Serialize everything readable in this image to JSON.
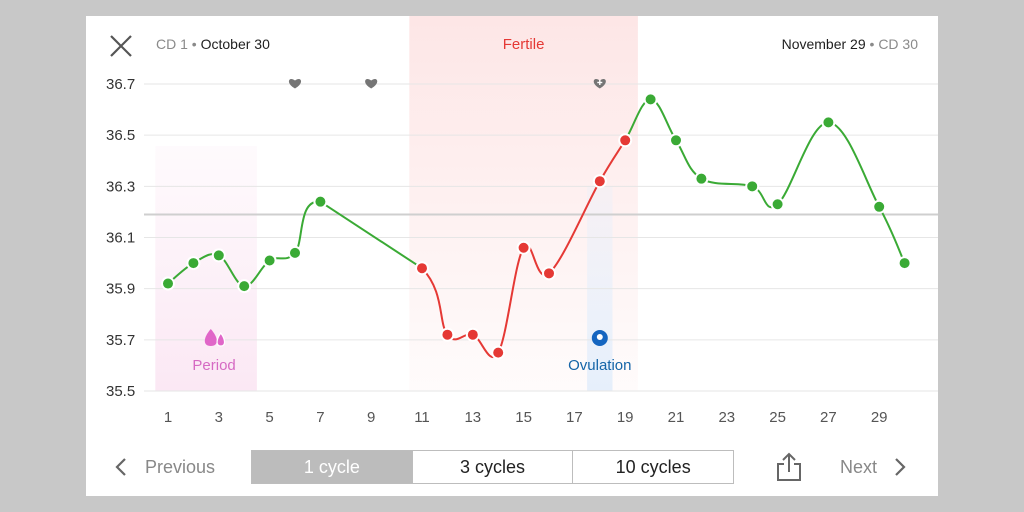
{
  "header": {
    "left_cd": "CD 1",
    "left_date": "October 30",
    "right_date": "November 29",
    "right_cd": "CD 30",
    "separator": "•"
  },
  "phases": {
    "fertile_label": "Fertile",
    "period_label": "Period",
    "ovulation_label": "Ovulation"
  },
  "footer": {
    "previous_label": "Previous",
    "next_label": "Next",
    "tabs": [
      "1 cycle",
      "3 cycles",
      "10 cycles"
    ],
    "selected_tab": "1 cycle"
  },
  "colors": {
    "normal_temp": "#3aaa35",
    "fertile_temp": "#e53935",
    "fertile_band": "#fde6e6",
    "period_band": "#fbe8f4",
    "period_icon": "#e066c8",
    "ovulation_band": "#e6effb",
    "ovulation_icon": "#1565c0",
    "coverline": "#cfcfcf"
  },
  "chart_data": {
    "type": "line",
    "xlabel": "",
    "ylabel": "",
    "x_ticks": [
      1,
      3,
      5,
      7,
      9,
      11,
      13,
      15,
      17,
      19,
      21,
      23,
      25,
      27,
      29
    ],
    "y_ticks": [
      "36.7",
      "36.5",
      "36.3",
      "36.1",
      "35.9",
      "35.7",
      "35.5"
    ],
    "ylim": [
      35.5,
      36.7
    ],
    "coverline": 36.19,
    "grid": true,
    "points": [
      {
        "day": 1,
        "temp": 35.92
      },
      {
        "day": 2,
        "temp": 36.0
      },
      {
        "day": 3,
        "temp": 36.03
      },
      {
        "day": 4,
        "temp": 35.91
      },
      {
        "day": 5,
        "temp": 36.01
      },
      {
        "day": 6,
        "temp": 36.04
      },
      {
        "day": 7,
        "temp": 36.24
      },
      {
        "day": 11,
        "temp": 35.98
      },
      {
        "day": 12,
        "temp": 35.72
      },
      {
        "day": 13,
        "temp": 35.72
      },
      {
        "day": 14,
        "temp": 35.65
      },
      {
        "day": 15,
        "temp": 36.06
      },
      {
        "day": 16,
        "temp": 35.96
      },
      {
        "day": 18,
        "temp": 36.32
      },
      {
        "day": 19,
        "temp": 36.48
      },
      {
        "day": 20,
        "temp": 36.64
      },
      {
        "day": 21,
        "temp": 36.48
      },
      {
        "day": 22,
        "temp": 36.33
      },
      {
        "day": 24,
        "temp": 36.3
      },
      {
        "day": 25,
        "temp": 36.23
      },
      {
        "day": 27,
        "temp": 36.55
      },
      {
        "day": 29,
        "temp": 36.22
      },
      {
        "day": 30,
        "temp": 36.0
      }
    ],
    "fertile_days": [
      11,
      19
    ],
    "period_days": [
      1,
      4
    ],
    "ovulation_day": 18,
    "heart_days": [
      6,
      9
    ],
    "heart_plus_day": 18
  }
}
